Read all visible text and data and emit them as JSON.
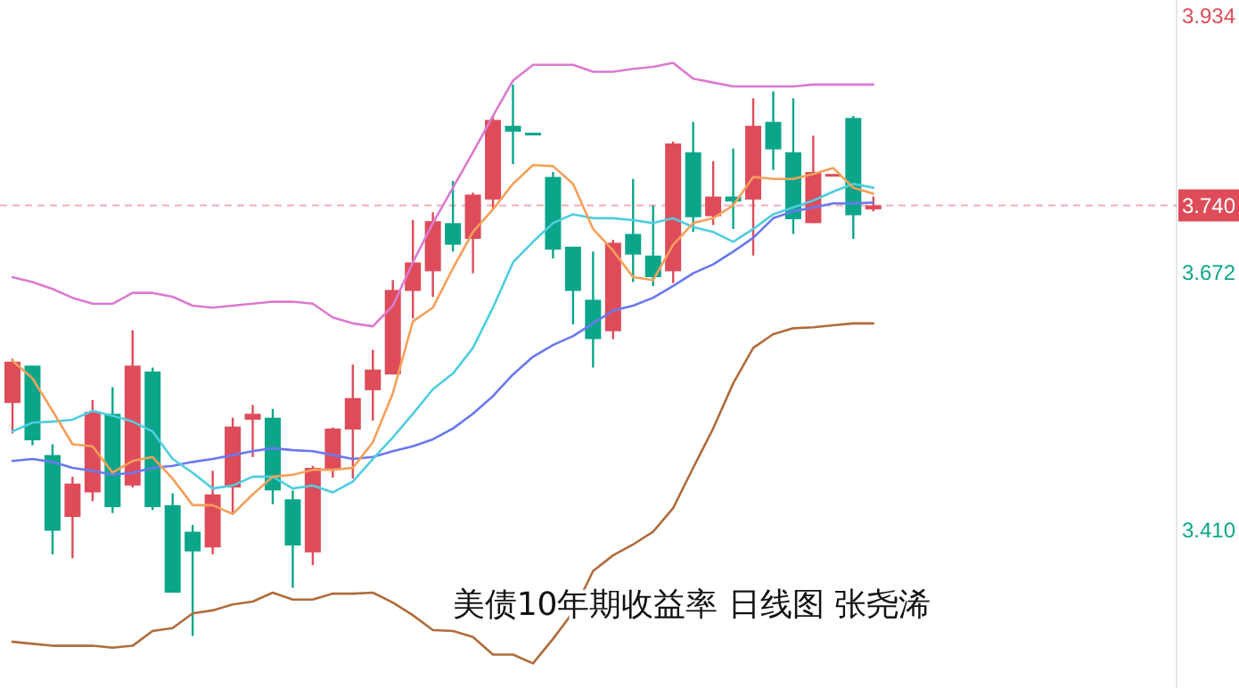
{
  "chart_data": {
    "type": "candlestick",
    "title": "美债10年期收益率  日线图  张尧浠",
    "categories": [
      null,
      null,
      null,
      null,
      null,
      null,
      null,
      null,
      null,
      null,
      null,
      null,
      null,
      null,
      null,
      null,
      null,
      null,
      null,
      null,
      null,
      null,
      null,
      null,
      null,
      null,
      null,
      null,
      null,
      null,
      null,
      null,
      null,
      null,
      null,
      null,
      null,
      null,
      null,
      null,
      null,
      null,
      null,
      null
    ],
    "ohlc": [
      [
        3.539,
        3.584,
        3.508,
        3.581
      ],
      [
        3.577,
        3.577,
        3.496,
        3.501
      ],
      [
        3.486,
        3.497,
        3.385,
        3.409
      ],
      [
        3.423,
        3.464,
        3.381,
        3.457
      ],
      [
        3.448,
        3.542,
        3.439,
        3.53
      ],
      [
        3.528,
        3.555,
        3.427,
        3.433
      ],
      [
        3.455,
        3.613,
        3.453,
        3.577
      ],
      [
        3.571,
        3.575,
        3.43,
        3.433
      ],
      [
        3.435,
        3.447,
        3.346,
        3.346
      ],
      [
        3.408,
        3.415,
        3.302,
        3.388
      ],
      [
        3.392,
        3.47,
        3.385,
        3.446
      ],
      [
        3.453,
        3.524,
        3.426,
        3.515
      ],
      [
        3.522,
        3.537,
        3.484,
        3.528
      ],
      [
        3.524,
        3.533,
        3.436,
        3.45
      ],
      [
        3.441,
        3.45,
        3.351,
        3.394
      ],
      [
        3.387,
        3.475,
        3.374,
        3.473
      ],
      [
        3.471,
        3.514,
        3.463,
        3.513
      ],
      [
        3.512,
        3.578,
        3.462,
        3.544
      ],
      [
        3.552,
        3.593,
        3.521,
        3.573
      ],
      [
        3.568,
        3.664,
        3.568,
        3.654
      ],
      [
        3.653,
        3.725,
        3.625,
        3.682
      ],
      [
        3.673,
        3.733,
        3.647,
        3.724
      ],
      [
        3.722,
        3.765,
        3.693,
        3.7
      ],
      [
        3.706,
        3.753,
        3.671,
        3.751
      ],
      [
        3.746,
        3.831,
        3.736,
        3.827
      ],
      [
        3.821,
        3.863,
        3.782,
        3.815
      ],
      [
        3.814,
        3.814,
        3.814,
        3.814
      ],
      [
        3.769,
        3.774,
        3.686,
        3.695
      ],
      [
        3.698,
        3.698,
        3.619,
        3.653
      ],
      [
        3.644,
        3.693,
        3.575,
        3.604
      ],
      [
        3.612,
        3.705,
        3.604,
        3.702
      ],
      [
        3.711,
        3.767,
        3.662,
        3.69
      ],
      [
        3.689,
        3.74,
        3.658,
        3.667
      ],
      [
        3.673,
        3.805,
        3.661,
        3.803
      ],
      [
        3.794,
        3.825,
        3.713,
        3.728
      ],
      [
        3.729,
        3.785,
        3.72,
        3.749
      ],
      [
        3.749,
        3.798,
        3.716,
        3.744
      ],
      [
        3.746,
        3.849,
        3.689,
        3.821
      ],
      [
        3.825,
        3.856,
        3.776,
        3.797
      ],
      [
        3.794,
        3.849,
        3.711,
        3.726
      ],
      [
        3.722,
        3.811,
        3.722,
        3.774
      ],
      [
        3.772,
        3.772,
        3.772,
        3.772
      ],
      [
        3.829,
        3.831,
        3.706,
        3.73
      ],
      [
        3.736,
        3.749,
        3.734,
        3.74
      ]
    ],
    "colors": [
      "#de4c5a",
      "#0ba68a",
      "#0ba68a",
      "#de4c5a",
      "#de4c5a",
      "#0ba68a",
      "#de4c5a",
      "#0ba68a",
      "#0ba68a",
      "#0ba68a",
      "#de4c5a",
      "#de4c5a",
      "#de4c5a",
      "#0ba68a",
      "#0ba68a",
      "#de4c5a",
      "#de4c5a",
      "#de4c5a",
      "#de4c5a",
      "#de4c5a",
      "#de4c5a",
      "#de4c5a",
      "#0ba68a",
      "#de4c5a",
      "#de4c5a",
      "#0ba68a",
      "#0ba68a",
      "#0ba68a",
      "#0ba68a",
      "#0ba68a",
      "#de4c5a",
      "#0ba68a",
      "#0ba68a",
      "#de4c5a",
      "#0ba68a",
      "#de4c5a",
      "#0ba68a",
      "#de4c5a",
      "#0ba68a",
      "#0ba68a",
      "#de4c5a",
      "#de4c5a",
      "#0ba68a",
      "#de4c5a"
    ],
    "series": [
      {
        "type": "line",
        "color": "#dc7ad0",
        "values": [
          3.667,
          3.662,
          3.655,
          3.646,
          3.64,
          3.64,
          3.651,
          3.651,
          3.647,
          3.638,
          3.636,
          3.638,
          3.64,
          3.642,
          3.642,
          3.64,
          3.626,
          3.62,
          3.617,
          3.638,
          3.682,
          3.722,
          3.758,
          3.794,
          3.831,
          3.867,
          3.883,
          3.883,
          3.883,
          3.876,
          3.876,
          3.879,
          3.881,
          3.885,
          3.869,
          3.865,
          3.861,
          3.861,
          3.861,
          3.861,
          3.863,
          3.863,
          3.863,
          3.863
        ]
      },
      {
        "type": "line",
        "color": "#b06c3c",
        "values": [
          3.296,
          3.294,
          3.292,
          3.292,
          3.292,
          3.29,
          3.292,
          3.307,
          3.31,
          3.325,
          3.328,
          3.334,
          3.337,
          3.346,
          3.339,
          3.339,
          3.345,
          3.345,
          3.346,
          3.336,
          3.323,
          3.308,
          3.307,
          3.301,
          3.283,
          3.283,
          3.274,
          3.299,
          3.326,
          3.368,
          3.384,
          3.395,
          3.408,
          3.432,
          3.473,
          3.513,
          3.559,
          3.595,
          3.609,
          3.615,
          3.616,
          3.618,
          3.62,
          3.62
        ]
      },
      {
        "type": "line",
        "color": "#6a78f0",
        "values": [
          3.48,
          3.482,
          3.479,
          3.473,
          3.47,
          3.466,
          3.468,
          3.473,
          3.475,
          3.479,
          3.482,
          3.486,
          3.49,
          3.493,
          3.491,
          3.49,
          3.486,
          3.482,
          3.484,
          3.49,
          3.495,
          3.502,
          3.513,
          3.528,
          3.546,
          3.568,
          3.586,
          3.598,
          3.607,
          3.62,
          3.633,
          3.638,
          3.646,
          3.658,
          3.671,
          3.68,
          3.693,
          3.707,
          3.727,
          3.734,
          3.738,
          3.742,
          3.742,
          3.743
        ]
      },
      {
        "type": "line",
        "color": "#4fcde0",
        "values": [
          3.51,
          3.519,
          3.52,
          3.522,
          3.531,
          3.526,
          3.52,
          3.51,
          3.482,
          3.468,
          3.452,
          3.455,
          3.464,
          3.464,
          3.452,
          3.455,
          3.448,
          3.459,
          3.482,
          3.504,
          3.528,
          3.553,
          3.569,
          3.595,
          3.636,
          3.682,
          3.703,
          3.722,
          3.731,
          3.727,
          3.727,
          3.725,
          3.722,
          3.727,
          3.718,
          3.713,
          3.703,
          3.716,
          3.731,
          3.738,
          3.745,
          3.754,
          3.762,
          3.758
        ]
      },
      {
        "type": "line",
        "color": "#f5a05a",
        "values": [
          3.582,
          3.564,
          3.531,
          3.497,
          3.495,
          3.468,
          3.48,
          3.484,
          3.462,
          3.435,
          3.435,
          3.426,
          3.446,
          3.464,
          3.466,
          3.471,
          3.471,
          3.473,
          3.499,
          3.549,
          3.622,
          3.636,
          3.676,
          3.713,
          3.736,
          3.762,
          3.781,
          3.78,
          3.762,
          3.716,
          3.694,
          3.667,
          3.664,
          3.7,
          3.722,
          3.727,
          3.74,
          3.769,
          3.767,
          3.767,
          3.772,
          3.778,
          3.758,
          3.752
        ]
      }
    ],
    "ylim": [
      3.249,
      3.949
    ],
    "yticks": [
      {
        "value": 3.41,
        "label": "3.410"
      },
      3.672,
      3.934
    ],
    "ref_lines": [
      {
        "axis": "y",
        "value": 3.74,
        "label": "3.740",
        "color": "#de4c5a",
        "line_style": "dashed"
      }
    ]
  }
}
